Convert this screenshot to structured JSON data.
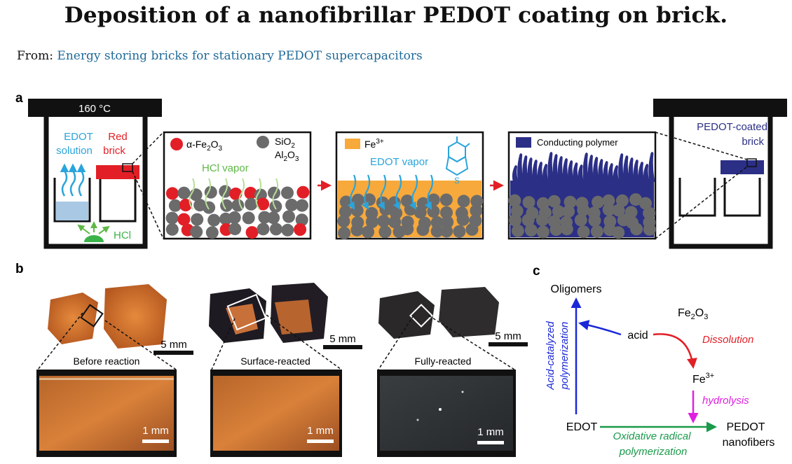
{
  "header": {
    "title": "Deposition of a nanofibrillar PEDOT coating on brick.",
    "from_prefix": "From:",
    "from_link": "Energy storing bricks for stationary PEDOT supercapacitors"
  },
  "panel_a": {
    "label": "a",
    "oven_temp": "160 °C",
    "edot_solution": [
      "EDOT",
      "solution"
    ],
    "red_brick": [
      "Red",
      "brick"
    ],
    "hcl": "HCl",
    "fe2o3_legend": "α-Fe2O3",
    "sio2_legend": "SiO2",
    "al2o3_legend": "Al2O3",
    "hcl_vapor": "HCl vapor",
    "fe3_legend": "Fe3+",
    "edot_vapor": "EDOT vapor",
    "thiophene_s": "S",
    "conducting_polymer": "Conducting polymer",
    "pedot_coated": [
      "PEDOT-coated",
      "brick"
    ]
  },
  "panel_b": {
    "label": "b",
    "scale_5mm": "5 mm",
    "scale_1mm": "1 mm",
    "states": [
      "Before reaction",
      "Surface-reacted",
      "Fully-reacted"
    ]
  },
  "panel_c": {
    "label": "c",
    "oligomers": "Oligomers",
    "fe2o3": "Fe2O3",
    "acid": "acid",
    "dissolution": "Dissolution",
    "fe3": "Fe3+",
    "hydrolysis": "hydrolysis",
    "edot": "EDOT",
    "pedot": "PEDOT",
    "nanofibers": "nanofibers",
    "acid_catalyzed": "Acid-catalyzed",
    "polymerization": "polymerization",
    "oxidative_radical": "Oxidative radical",
    "oxidative_polymerization": "polymerization"
  },
  "colors": {
    "red": "#e21f26",
    "grey": "#6b6b6b",
    "orange": "#f7a93b",
    "navy": "#2b2f86",
    "blue_text": "#2aa4dc",
    "green": "#5fb847",
    "arrow_red": "#e21f26",
    "magenta": "#e020e0",
    "dark_green": "#1a9a4a",
    "blue": "#1a28d8"
  }
}
